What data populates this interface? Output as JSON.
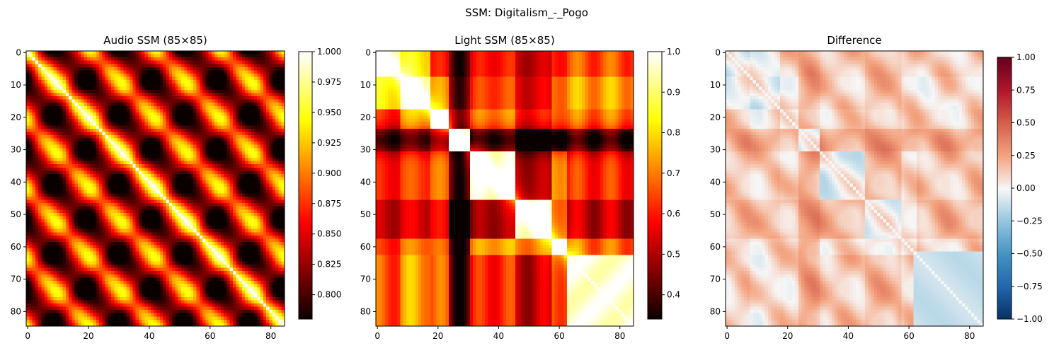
{
  "figure": {
    "suptitle": "SSM: Digitalism_-_Pogo"
  },
  "chart_data": [
    {
      "type": "heatmap",
      "title": "Audio SSM (85×85)",
      "colormap": "hot",
      "size": 85,
      "xticks": [
        "0",
        "20",
        "40",
        "60",
        "80"
      ],
      "yticks": [
        "0",
        "10",
        "20",
        "30",
        "40",
        "50",
        "60",
        "70",
        "80"
      ],
      "colorbar": {
        "min": 0.78,
        "max": 1.0,
        "ticks": [
          "0.800",
          "0.825",
          "0.850",
          "0.875",
          "0.900",
          "0.925",
          "0.950",
          "0.975",
          "1.000"
        ]
      }
    },
    {
      "type": "heatmap",
      "title": "Light SSM (85×85)",
      "colormap": "hot",
      "size": 85,
      "xticks": [
        "0",
        "20",
        "40",
        "60",
        "80"
      ],
      "yticks": [
        "0",
        "10",
        "20",
        "30",
        "40",
        "50",
        "60",
        "70",
        "80"
      ],
      "colorbar": {
        "min": 0.34,
        "max": 1.0,
        "ticks": [
          "0.4",
          "0.5",
          "0.6",
          "0.7",
          "0.8",
          "0.9",
          "1.0"
        ]
      }
    },
    {
      "type": "heatmap",
      "title": "Difference",
      "colormap": "RdBu_r",
      "size": 85,
      "xticks": [
        "0",
        "20",
        "40",
        "60",
        "80"
      ],
      "yticks": [
        "0",
        "10",
        "20",
        "30",
        "40",
        "50",
        "60",
        "70",
        "80"
      ],
      "colorbar": {
        "min": -1.0,
        "max": 1.0,
        "ticks": [
          "−1.00",
          "−0.75",
          "−0.50",
          "−0.25",
          "0.00",
          "0.25",
          "0.50",
          "0.75",
          "1.00"
        ]
      }
    }
  ]
}
